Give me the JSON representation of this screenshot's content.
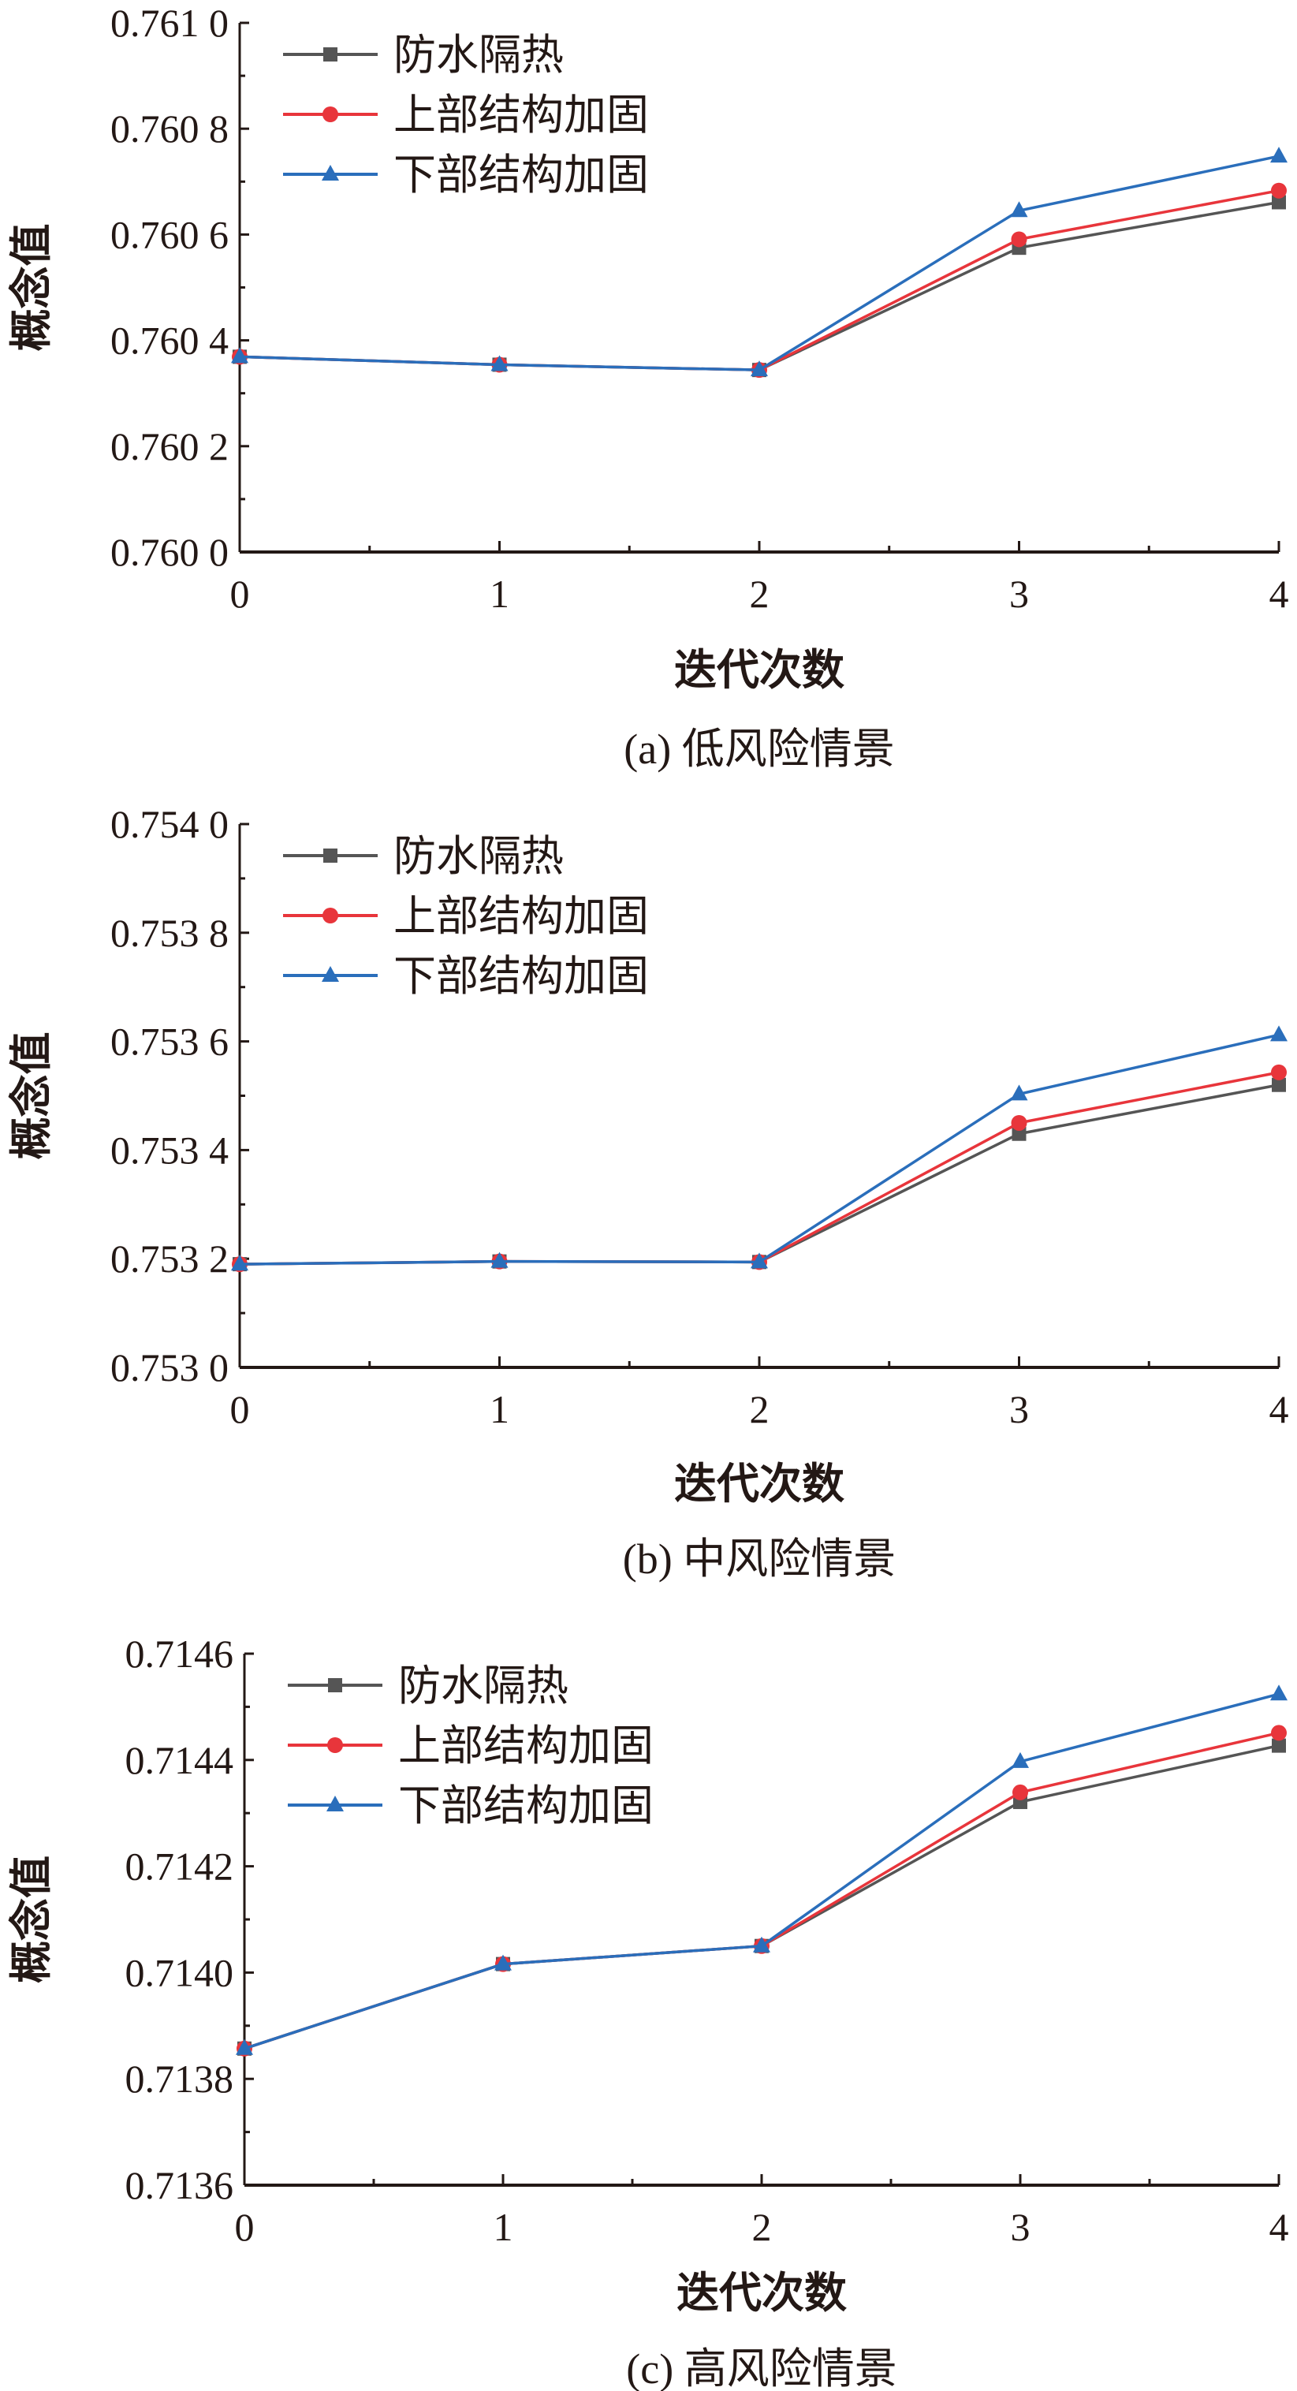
{
  "chart_data": [
    {
      "type": "line",
      "caption": "(a) 低风险情景",
      "xlabel": "迭代次数",
      "ylabel": "概念值",
      "x": [
        0,
        1,
        2,
        3,
        4
      ],
      "xticks": [
        "0",
        "1",
        "2",
        "3",
        "4"
      ],
      "ylim": [
        0.76,
        0.761
      ],
      "yticks": [
        "0.760 0",
        "0.760 2",
        "0.760 4",
        "0.760 6",
        "0.760 8",
        "0.761 0"
      ],
      "legend_position": "top-left",
      "series": [
        {
          "name": "防水隔热",
          "color": "#555555",
          "marker": "square",
          "values": [
            0.760369,
            0.760354,
            0.760344,
            0.760575,
            0.760661
          ]
        },
        {
          "name": "上部结构加固",
          "color": "#e8353b",
          "marker": "circle",
          "values": [
            0.760369,
            0.760354,
            0.760344,
            0.760591,
            0.760683
          ]
        },
        {
          "name": "下部结构加固",
          "color": "#2a6ebb",
          "marker": "triangle",
          "values": [
            0.760369,
            0.760354,
            0.760344,
            0.760645,
            0.760748
          ]
        }
      ]
    },
    {
      "type": "line",
      "caption": "(b) 中风险情景",
      "xlabel": "迭代次数",
      "ylabel": "概念值",
      "x": [
        0,
        1,
        2,
        3,
        4
      ],
      "xticks": [
        "0",
        "1",
        "2",
        "3",
        "4"
      ],
      "ylim": [
        0.753,
        0.754
      ],
      "yticks": [
        "0.753 0",
        "0.753 2",
        "0.753 4",
        "0.753 6",
        "0.753 8",
        "0.754 0"
      ],
      "legend_position": "top-left",
      "series": [
        {
          "name": "防水隔热",
          "color": "#555555",
          "marker": "square",
          "values": [
            0.75319,
            0.753195,
            0.753194,
            0.75343,
            0.75352
          ]
        },
        {
          "name": "上部结构加固",
          "color": "#e8353b",
          "marker": "circle",
          "values": [
            0.75319,
            0.753195,
            0.753194,
            0.75345,
            0.753543
          ]
        },
        {
          "name": "下部结构加固",
          "color": "#2a6ebb",
          "marker": "triangle",
          "values": [
            0.75319,
            0.753195,
            0.753194,
            0.753503,
            0.753612
          ]
        }
      ]
    },
    {
      "type": "line",
      "caption": "(c) 高风险情景",
      "xlabel": "迭代次数",
      "ylabel": "概念值",
      "x": [
        0,
        1,
        2,
        3,
        4
      ],
      "xticks": [
        "0",
        "1",
        "2",
        "3",
        "4"
      ],
      "ylim": [
        0.7136,
        0.7146
      ],
      "yticks": [
        "0.7136",
        "0.7138",
        "0.7140",
        "0.7142",
        "0.7144",
        "0.7146"
      ],
      "legend_position": "top-left",
      "series": [
        {
          "name": "防水隔热",
          "color": "#555555",
          "marker": "square",
          "values": [
            0.713857,
            0.714016,
            0.71405,
            0.714321,
            0.714427
          ]
        },
        {
          "name": "上部结构加固",
          "color": "#e8353b",
          "marker": "circle",
          "values": [
            0.713857,
            0.714016,
            0.71405,
            0.714339,
            0.714451
          ]
        },
        {
          "name": "下部结构加固",
          "color": "#2a6ebb",
          "marker": "triangle",
          "values": [
            0.713857,
            0.714016,
            0.71405,
            0.714397,
            0.714524
          ]
        }
      ]
    }
  ]
}
